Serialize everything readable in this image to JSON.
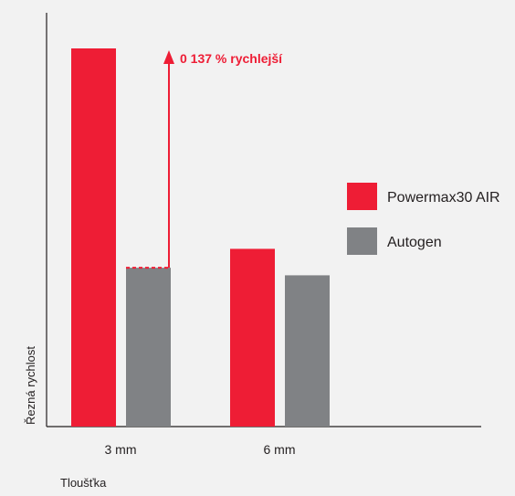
{
  "chart_data": {
    "type": "bar",
    "categories": [
      "3 mm",
      "6 mm"
    ],
    "series": [
      {
        "name": "Powermax30 AIR",
        "color": "#ee1d35",
        "values": [
          100,
          47
        ]
      },
      {
        "name": "Autogen",
        "color": "#808285",
        "values": [
          42,
          40
        ]
      }
    ],
    "xlabel": "Tloušťka",
    "ylabel": "Řezná rychlost",
    "ylim": [
      0,
      100
    ],
    "legend_position": "right",
    "annotation": {
      "text": "0 137 % rychlejší",
      "category": "3 mm",
      "from_series": "Autogen",
      "color": "#ee1d35"
    },
    "axis_color": "#231f20"
  }
}
